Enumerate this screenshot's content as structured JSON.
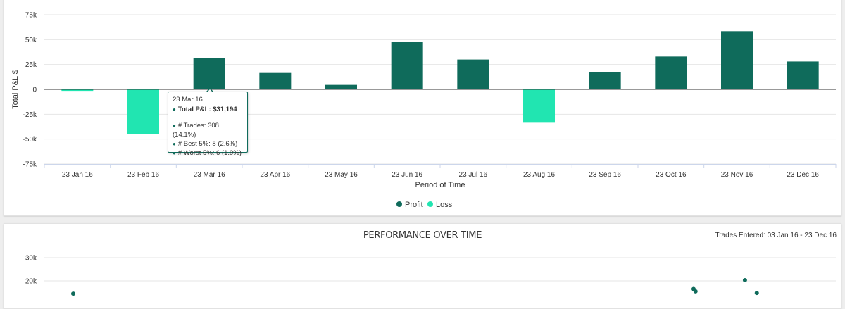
{
  "chart_data": [
    {
      "type": "bar",
      "title": "",
      "xlabel": "Period of Time",
      "ylabel": "Total P&L $",
      "ylim": [
        -75000,
        75000
      ],
      "yticks": [
        75000,
        50000,
        25000,
        0,
        -25000,
        -50000,
        -75000
      ],
      "ytick_labels": [
        "75k",
        "50k",
        "25k",
        "0",
        "-25k",
        "-50k",
        "-75k"
      ],
      "categories": [
        "23 Jan 16",
        "23 Feb 16",
        "23 Mar 16",
        "23 Apr 16",
        "23 May 16",
        "23 Jun 16",
        "23 Jul 16",
        "23 Aug 16",
        "23 Sep 16",
        "23 Oct 16",
        "23 Nov 16",
        "23 Dec 16"
      ],
      "values": [
        -1500,
        -45000,
        31194,
        16500,
        4500,
        47500,
        30000,
        -33500,
        17000,
        33000,
        58500,
        28000
      ],
      "legend": {
        "position": "bottom",
        "entries": [
          "Profit",
          "Loss"
        ]
      },
      "colors": {
        "profit": "#0f6b5b",
        "loss": "#21e5b1",
        "grid": "#e6e6e6",
        "zero_line": "#333333"
      },
      "tooltip": {
        "date": "23 Mar 16",
        "total": "Total P&L: $31,194",
        "rows": [
          "# Trades: 308 (14.1%)",
          "# Best 5%: 8 (2.6%)",
          "# Worst 5%: 6 (1.9%)"
        ]
      }
    },
    {
      "type": "scatter",
      "title": "PERFORMANCE OVER TIME",
      "subtitle": "Trades Entered: 03 Jan 16 - 23 Dec 16",
      "yticks_visible": [
        30000,
        20000
      ],
      "ytick_labels": [
        "30k",
        "20k"
      ],
      "x": [
        "03 Jan 16",
        "12 Nov 16",
        "13 Nov 16",
        "08 Dec 16",
        "14 Dec 16"
      ],
      "y": [
        14500,
        16500,
        15500,
        20300,
        14800
      ],
      "colors": {
        "points": "#0f6b5b"
      }
    }
  ]
}
